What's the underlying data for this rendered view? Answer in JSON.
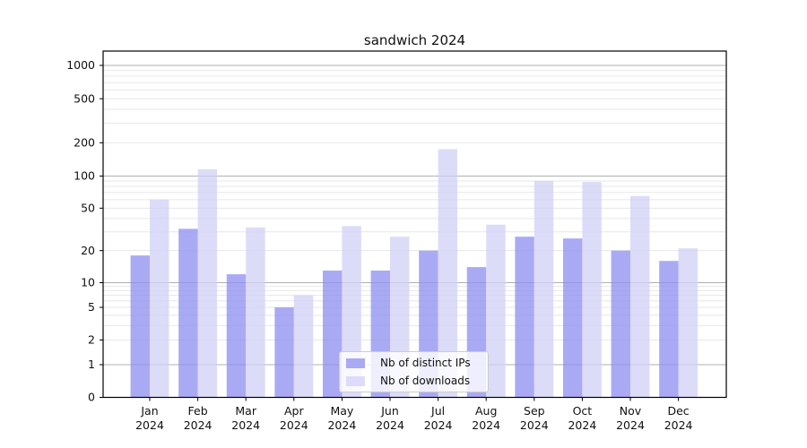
{
  "title": "sandwich 2024",
  "chart_data": {
    "type": "bar",
    "title": "sandwich 2024",
    "scale": "symlog",
    "grid": true,
    "legend_position": "lower center",
    "xlabel": "",
    "ylabel": "",
    "ylim": [
      0,
      1400
    ],
    "y_ticks": [
      0,
      1,
      2,
      5,
      10,
      20,
      50,
      100,
      200,
      500,
      1000
    ],
    "categories": [
      "Jan 2024",
      "Feb 2024",
      "Mar 2024",
      "Apr 2024",
      "May 2024",
      "Jun 2024",
      "Jul 2024",
      "Aug 2024",
      "Sep 2024",
      "Oct 2024",
      "Nov 2024",
      "Dec 2024"
    ],
    "series": [
      {
        "name": "Nb of distinct IPs",
        "color": "#aaaaf4",
        "values": [
          18,
          32,
          12,
          5,
          13,
          13,
          20,
          14,
          27,
          26,
          20,
          16
        ]
      },
      {
        "name": "Nb of downloads",
        "color": "#dcdcf9",
        "values": [
          60,
          115,
          33,
          7,
          34,
          27,
          175,
          35,
          90,
          88,
          65,
          21
        ]
      }
    ]
  },
  "colors": {
    "major_grid": "#b0b0b0",
    "minor_grid": "#e7e7e7",
    "axis": "#000000",
    "text": "#111111",
    "background": "#ffffff"
  }
}
